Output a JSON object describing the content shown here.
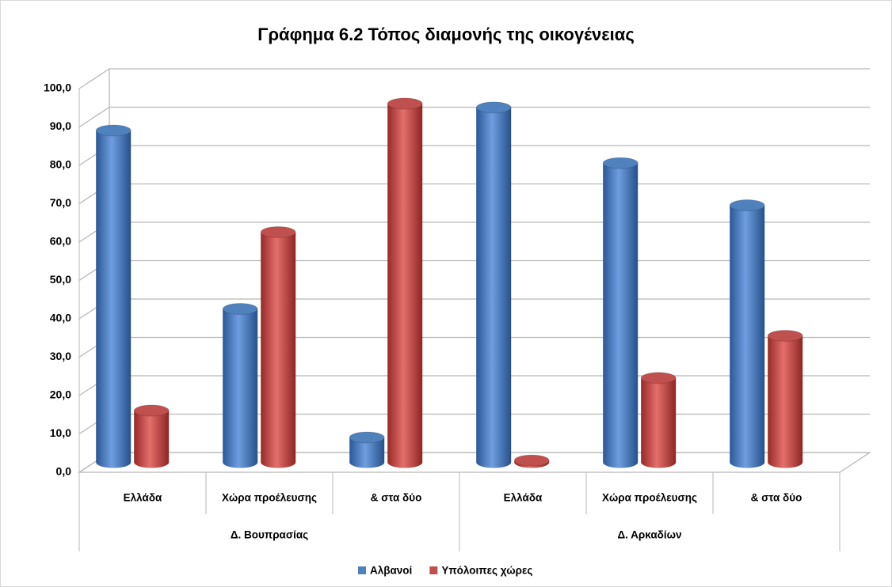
{
  "chart_data": {
    "type": "bar",
    "title": "Γράφημα 6.2 Τόπος διαμονής της οικογένειας",
    "categories": [
      "Ελλάδα",
      "Χώρα προέλευσης",
      "& στα δύο",
      "Ελλάδα",
      "Χώρα προέλευσης",
      "& στα δύο"
    ],
    "groups": [
      {
        "name": "Δ. Βουπρασίας",
        "size": 3
      },
      {
        "name": "Δ. Αρκαδίων",
        "size": 3
      }
    ],
    "series": [
      {
        "name": "Αλβανοί",
        "color": "#4f81bd",
        "values": [
          86.5,
          40,
          6.5,
          92.5,
          78,
          67
        ]
      },
      {
        "name": "Υπόλοιπες χώρες",
        "color": "#c0504d",
        "values": [
          13.5,
          60,
          93.5,
          0.5,
          22,
          33
        ]
      }
    ],
    "ylim": [
      0,
      100
    ],
    "yticks": [
      {
        "value": 0,
        "label": "0,0"
      },
      {
        "value": 10,
        "label": "10,0"
      },
      {
        "value": 20,
        "label": "20,0"
      },
      {
        "value": 30,
        "label": "30,0"
      },
      {
        "value": 40,
        "label": "40,0"
      },
      {
        "value": 50,
        "label": "50,0"
      },
      {
        "value": 60,
        "label": "60,0"
      },
      {
        "value": 70,
        "label": "70,0"
      },
      {
        "value": 80,
        "label": "80,0"
      },
      {
        "value": 90,
        "label": "90,0"
      },
      {
        "value": 100,
        "label": "100,0"
      }
    ],
    "grid": true,
    "legend": "bottom"
  }
}
